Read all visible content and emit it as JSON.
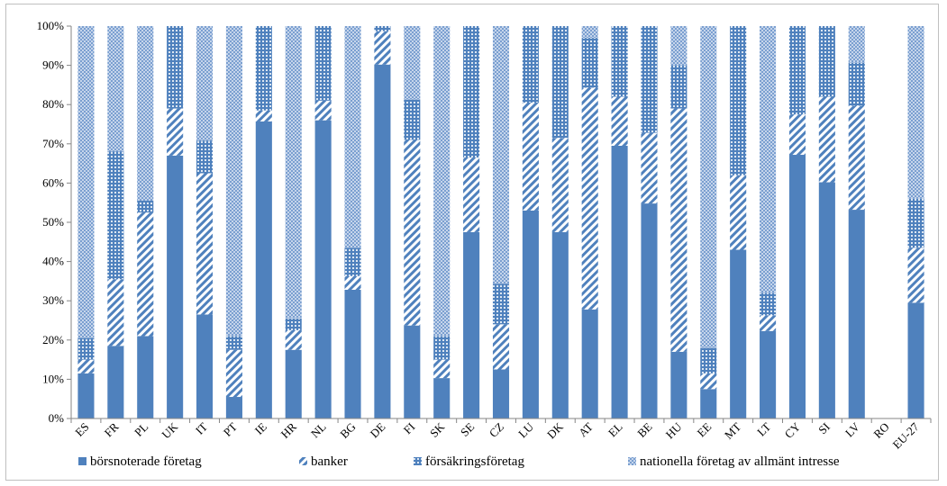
{
  "chart_data": {
    "type": "bar",
    "stacked": "percent",
    "categories": [
      "ES",
      "FR",
      "PL",
      "UK",
      "IT",
      "PT",
      "IE",
      "HR",
      "NL",
      "BG",
      "DE",
      "FI",
      "SK",
      "SE",
      "CZ",
      "LU",
      "DK",
      "AT",
      "EL",
      "BE",
      "HU",
      "EE",
      "MT",
      "LT",
      "CY",
      "SI",
      "LV",
      "RO",
      "EU-27"
    ],
    "series": [
      {
        "name": "börsnoterade företag",
        "color": "#4f81bd",
        "pattern": "solid",
        "values": [
          11.5,
          18.5,
          21,
          67,
          26.5,
          5.5,
          75.7,
          17.5,
          76,
          32.8,
          90.2,
          23.7,
          10.3,
          47.5,
          12.5,
          53,
          47.5,
          27.8,
          69.5,
          54.8,
          17,
          7.5,
          43,
          22.3,
          67.2,
          60.2,
          53.2,
          0,
          29.5
        ]
      },
      {
        "name": "banker",
        "color": "#4f81bd",
        "pattern": "diagonal",
        "values": [
          3.5,
          17,
          31.5,
          12,
          36,
          12,
          2.8,
          5,
          5,
          3.5,
          8.5,
          47.3,
          4.7,
          19,
          11.5,
          27.5,
          24,
          56.5,
          12.5,
          18,
          62,
          4,
          19,
          4,
          10.3,
          21.8,
          26.5,
          0,
          14
        ]
      },
      {
        "name": "försäkringsföretag",
        "color": "#4f81bd",
        "pattern": "dots",
        "values": [
          5.5,
          32.5,
          3,
          21,
          8.3,
          3.5,
          21.5,
          3,
          19,
          7.2,
          1.3,
          10.3,
          6,
          33.5,
          10.3,
          19.5,
          28.5,
          12.7,
          18,
          27.2,
          11,
          6.5,
          38,
          5.7,
          22.5,
          18,
          11,
          0,
          12.5
        ]
      },
      {
        "name": "nationella företag av allmänt intresse",
        "color": "#9bb7dd",
        "pattern": "mesh",
        "values": [
          79.5,
          32,
          44.5,
          0,
          29.2,
          79,
          0,
          74.5,
          0,
          56.5,
          0,
          18.7,
          79,
          0,
          65.7,
          0,
          0,
          3,
          0,
          0,
          10,
          82,
          0,
          68,
          0,
          0,
          9.3,
          0,
          44
        ]
      }
    ],
    "y_ticks": [
      "0%",
      "10%",
      "20%",
      "30%",
      "40%",
      "50%",
      "60%",
      "70%",
      "80%",
      "90%",
      "100%"
    ],
    "ylim": [
      0,
      100
    ],
    "grid": false,
    "legend_position": "bottom"
  }
}
